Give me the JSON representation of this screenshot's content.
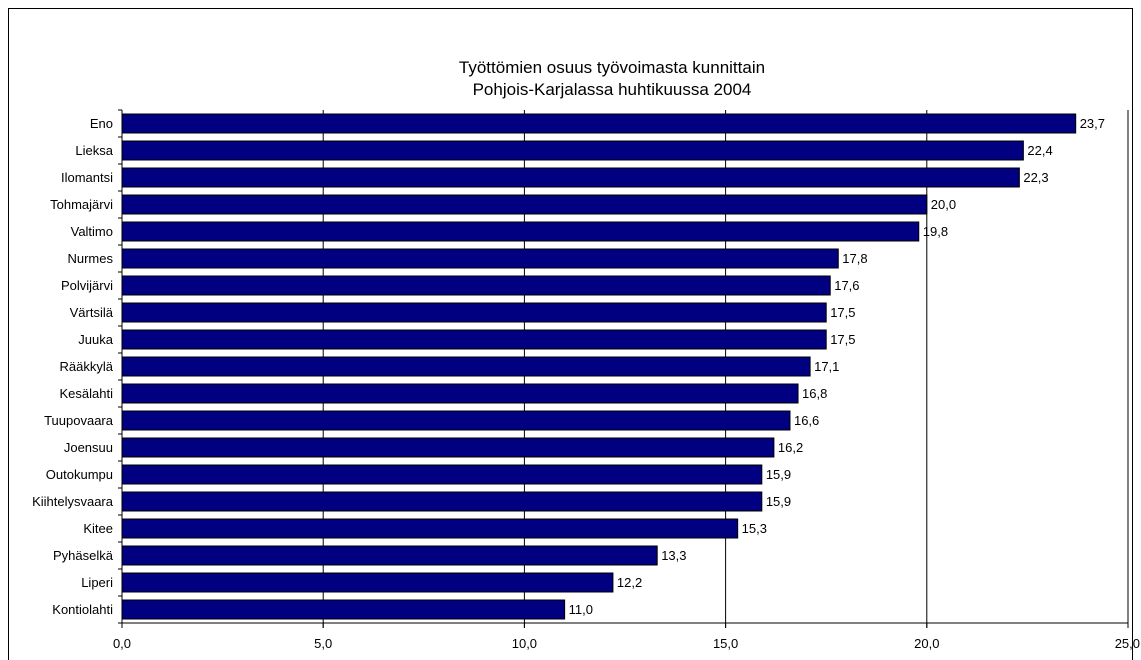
{
  "chart_data": {
    "type": "bar",
    "orientation": "horizontal",
    "title_lines": [
      "Työttömien osuus työvoimasta kunnittain",
      "Pohjois-Karjalassa huhtikuussa 2004"
    ],
    "categories": [
      "Eno",
      "Lieksa",
      "Ilomantsi",
      "Tohmajärvi",
      "Valtimo",
      "Nurmes",
      "Polvijärvi",
      "Värtsilä",
      "Juuka",
      "Rääkkylä",
      "Kesälahti",
      "Tuupovaara",
      "Joensuu",
      "Outokumpu",
      "Kiihtelysvaara",
      "Kitee",
      "Pyhäselkä",
      "Liperi",
      "Kontiolahti"
    ],
    "values": [
      23.7,
      22.4,
      22.3,
      20.0,
      19.8,
      17.8,
      17.6,
      17.5,
      17.5,
      17.1,
      16.8,
      16.6,
      16.2,
      15.9,
      15.9,
      15.3,
      13.3,
      12.2,
      11.0
    ],
    "value_labels": [
      "23,7",
      "22,4",
      "22,3",
      "20,0",
      "19,8",
      "17,8",
      "17,6",
      "17,5",
      "17,5",
      "17,1",
      "16,8",
      "16,6",
      "16,2",
      "15,9",
      "15,9",
      "15,3",
      "13,3",
      "12,2",
      "11,0"
    ],
    "x_ticks": [
      0,
      5,
      10,
      15,
      20,
      25
    ],
    "x_tick_labels": [
      "0,0",
      "5,0",
      "10,0",
      "15,0",
      "20,0",
      "25,0"
    ],
    "xlim": [
      0,
      25
    ],
    "grid": "vertical",
    "colors": {
      "bar": "#000080",
      "bar_outline": "#000000",
      "grid": "#000000"
    },
    "legend": "none"
  }
}
